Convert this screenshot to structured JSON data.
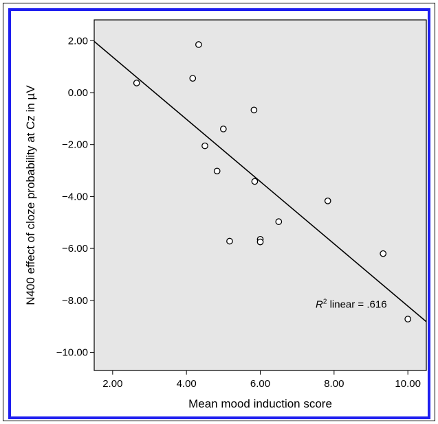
{
  "colors": {
    "plot_background": "#e6e6e6",
    "border_accent": "#1f1ff0",
    "ink": "#000000",
    "marker_fill": "#ffffff"
  },
  "chart_data": {
    "type": "scatter",
    "title": "",
    "xlabel": "Mean mood induction score",
    "ylabel": "N400 effect of cloze probability at Cz in µV",
    "xlim": [
      1.5,
      10.5
    ],
    "ylim": [
      -10.7,
      2.8
    ],
    "x_ticks": [
      2,
      4,
      6,
      8,
      10
    ],
    "x_tick_labels": [
      "2.00",
      "4.00",
      "6.00",
      "8.00",
      "10.00"
    ],
    "y_ticks": [
      2,
      0,
      -2,
      -4,
      -6,
      -8,
      -10
    ],
    "y_tick_labels": [
      "2.00",
      "0.00",
      "−2.00",
      "−4.00",
      "−6.00",
      "−8.00",
      "−10.00"
    ],
    "grid": false,
    "legend": "none",
    "points": [
      {
        "x": 2.65,
        "y": 0.37
      },
      {
        "x": 4.17,
        "y": 0.55
      },
      {
        "x": 4.33,
        "y": 1.85
      },
      {
        "x": 4.5,
        "y": -2.05
      },
      {
        "x": 4.83,
        "y": -3.02
      },
      {
        "x": 5.0,
        "y": -1.4
      },
      {
        "x": 5.17,
        "y": -5.72
      },
      {
        "x": 5.83,
        "y": -0.67
      },
      {
        "x": 5.85,
        "y": -3.42
      },
      {
        "x": 6.0,
        "y": -5.65
      },
      {
        "x": 6.0,
        "y": -5.75
      },
      {
        "x": 6.5,
        "y": -4.97
      },
      {
        "x": 7.83,
        "y": -4.17
      },
      {
        "x": 9.33,
        "y": -6.2
      },
      {
        "x": 10.0,
        "y": -8.72
      }
    ],
    "fit_line": {
      "type": "linear",
      "x_start": 1.5,
      "y_start": 1.97,
      "x_end": 10.5,
      "y_end": -8.82
    },
    "annotation": {
      "r_symbol": "R",
      "superscript": "2",
      "text": " linear = .616",
      "x": 7.5,
      "y": -8.15
    }
  }
}
